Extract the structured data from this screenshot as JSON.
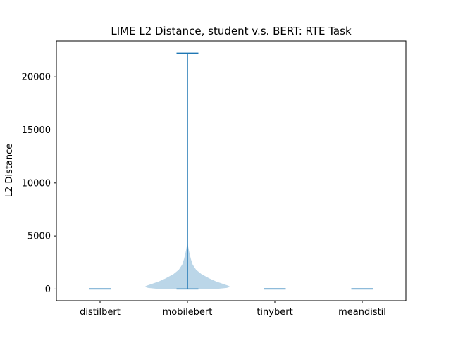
{
  "chart_data": {
    "type": "violin",
    "title": "LIME L2 Distance, student v.s. BERT: RTE Task",
    "xlabel": "",
    "ylabel": "L2 Distance",
    "categories": [
      "distilbert",
      "mobilebert",
      "tinybert",
      "meandistil"
    ],
    "ylim": [
      -1100,
      23400
    ],
    "yticks": [
      0,
      5000,
      10000,
      15000,
      20000
    ],
    "grid": false,
    "colors": {
      "line": "#1f77b4",
      "body": "#1f77b4"
    },
    "violins": [
      {
        "category": "distilbert",
        "min": 0,
        "max": 10,
        "profile": []
      },
      {
        "category": "mobilebert",
        "min": 0,
        "max": 22250,
        "profile": [
          [
            0,
            0.33
          ],
          [
            100,
            0.45
          ],
          [
            200,
            0.49
          ],
          [
            300,
            0.47
          ],
          [
            500,
            0.4
          ],
          [
            700,
            0.33
          ],
          [
            1000,
            0.25
          ],
          [
            1400,
            0.16
          ],
          [
            1800,
            0.1
          ],
          [
            2300,
            0.06
          ],
          [
            2800,
            0.04
          ],
          [
            3300,
            0.025
          ],
          [
            3700,
            0.015
          ],
          [
            4000,
            0.008
          ],
          [
            4300,
            0.003
          ],
          [
            4500,
            0
          ]
        ]
      },
      {
        "category": "tinybert",
        "min": 0,
        "max": 10,
        "profile": []
      },
      {
        "category": "meandistil",
        "min": 0,
        "max": 10,
        "profile": []
      }
    ]
  }
}
